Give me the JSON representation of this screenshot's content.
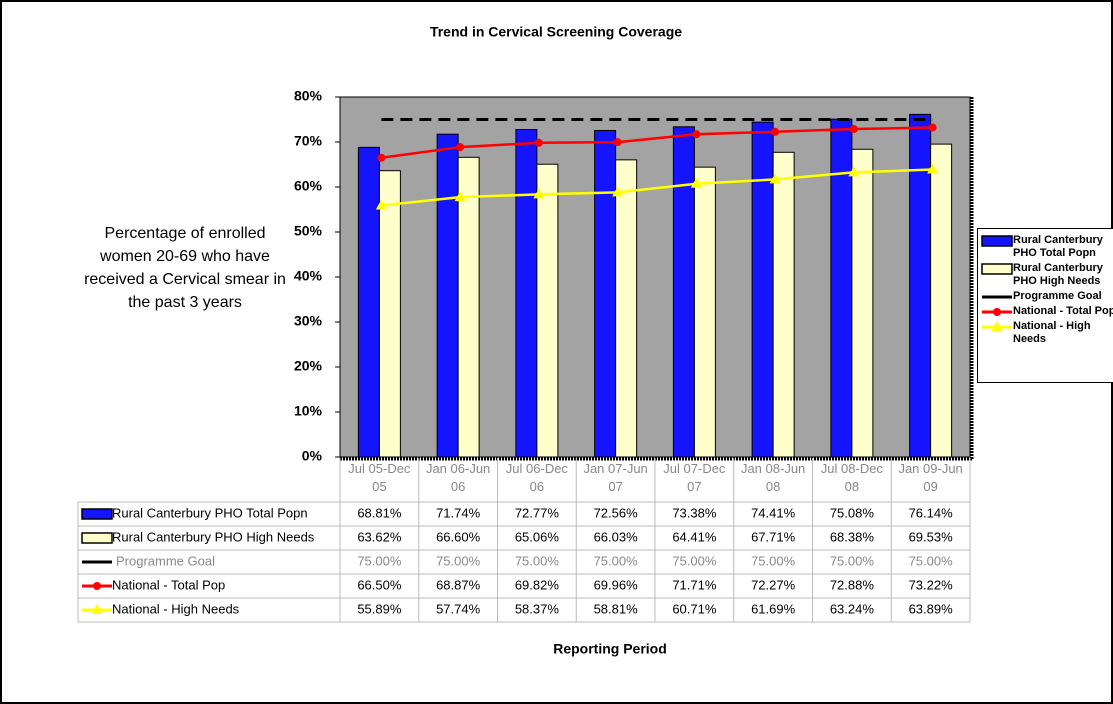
{
  "chart_data": {
    "type": "bar",
    "title": "Trend in Cervical Screening Coverage",
    "y_label": "Percentage of enrolled women 20-69 who have received a Cervical smear in the past 3 years",
    "x_label": "Reporting Period",
    "categories": [
      "Jul 05-Dec 05",
      "Jan 06-Jun 06",
      "Jul 06-Dec 06",
      "Jan 07-Jun 07",
      "Jul 07-Dec 07",
      "Jan 08-Jun 08",
      "Jul 08-Dec 08",
      "Jan 09-Jun 09"
    ],
    "series": [
      {
        "name": "Rural Canterbury PHO Total Popn",
        "type": "bar",
        "color": "#1414ff",
        "values": [
          68.81,
          71.74,
          72.77,
          72.56,
          73.38,
          74.41,
          75.08,
          76.14
        ],
        "value_labels": [
          "68.81%",
          "71.74%",
          "72.77%",
          "72.56%",
          "73.38%",
          "74.41%",
          "75.08%",
          "76.14%"
        ]
      },
      {
        "name": "Rural Canterbury PHO High Needs",
        "type": "bar",
        "color": "#ffffcc",
        "values": [
          63.62,
          66.6,
          65.06,
          66.03,
          64.41,
          67.71,
          68.38,
          69.53
        ],
        "value_labels": [
          "63.62%",
          "66.60%",
          "65.06%",
          "66.03%",
          "64.41%",
          "67.71%",
          "68.38%",
          "69.53%"
        ]
      },
      {
        "name": "Programme Goal",
        "type": "line",
        "color": "#000000",
        "style": "dashed",
        "marker": "none",
        "values": [
          75,
          75,
          75,
          75,
          75,
          75,
          75,
          75
        ],
        "value_labels": [
          "75.00%",
          "75.00%",
          "75.00%",
          "75.00%",
          "75.00%",
          "75.00%",
          "75.00%",
          "75.00%"
        ]
      },
      {
        "name": "National - Total Pop",
        "type": "line",
        "color": "#ff0000",
        "style": "solid",
        "marker": "circle",
        "values": [
          66.5,
          68.87,
          69.82,
          69.96,
          71.71,
          72.27,
          72.88,
          73.22
        ],
        "value_labels": [
          "66.50%",
          "68.87%",
          "69.82%",
          "69.96%",
          "71.71%",
          "72.27%",
          "72.88%",
          "73.22%"
        ]
      },
      {
        "name": "National - High Needs",
        "type": "line",
        "color": "#ffff00",
        "style": "solid",
        "marker": "triangle",
        "values": [
          55.89,
          57.74,
          58.37,
          58.81,
          60.71,
          61.69,
          63.24,
          63.89
        ],
        "value_labels": [
          "55.89%",
          "57.74%",
          "58.37%",
          "58.81%",
          "60.71%",
          "61.69%",
          "63.24%",
          "63.89%"
        ]
      }
    ],
    "ylim": [
      0,
      80
    ],
    "yticks": [
      {
        "value": 0,
        "label": "0%"
      },
      {
        "value": 10,
        "label": "10%"
      },
      {
        "value": 20,
        "label": "20%"
      },
      {
        "value": 30,
        "label": "30%"
      },
      {
        "value": 40,
        "label": "40%"
      },
      {
        "value": 50,
        "label": "50%"
      },
      {
        "value": 60,
        "label": "60%"
      },
      {
        "value": 70,
        "label": "70%"
      },
      {
        "value": 80,
        "label": "80%"
      }
    ],
    "grid": false,
    "legend": "right"
  }
}
